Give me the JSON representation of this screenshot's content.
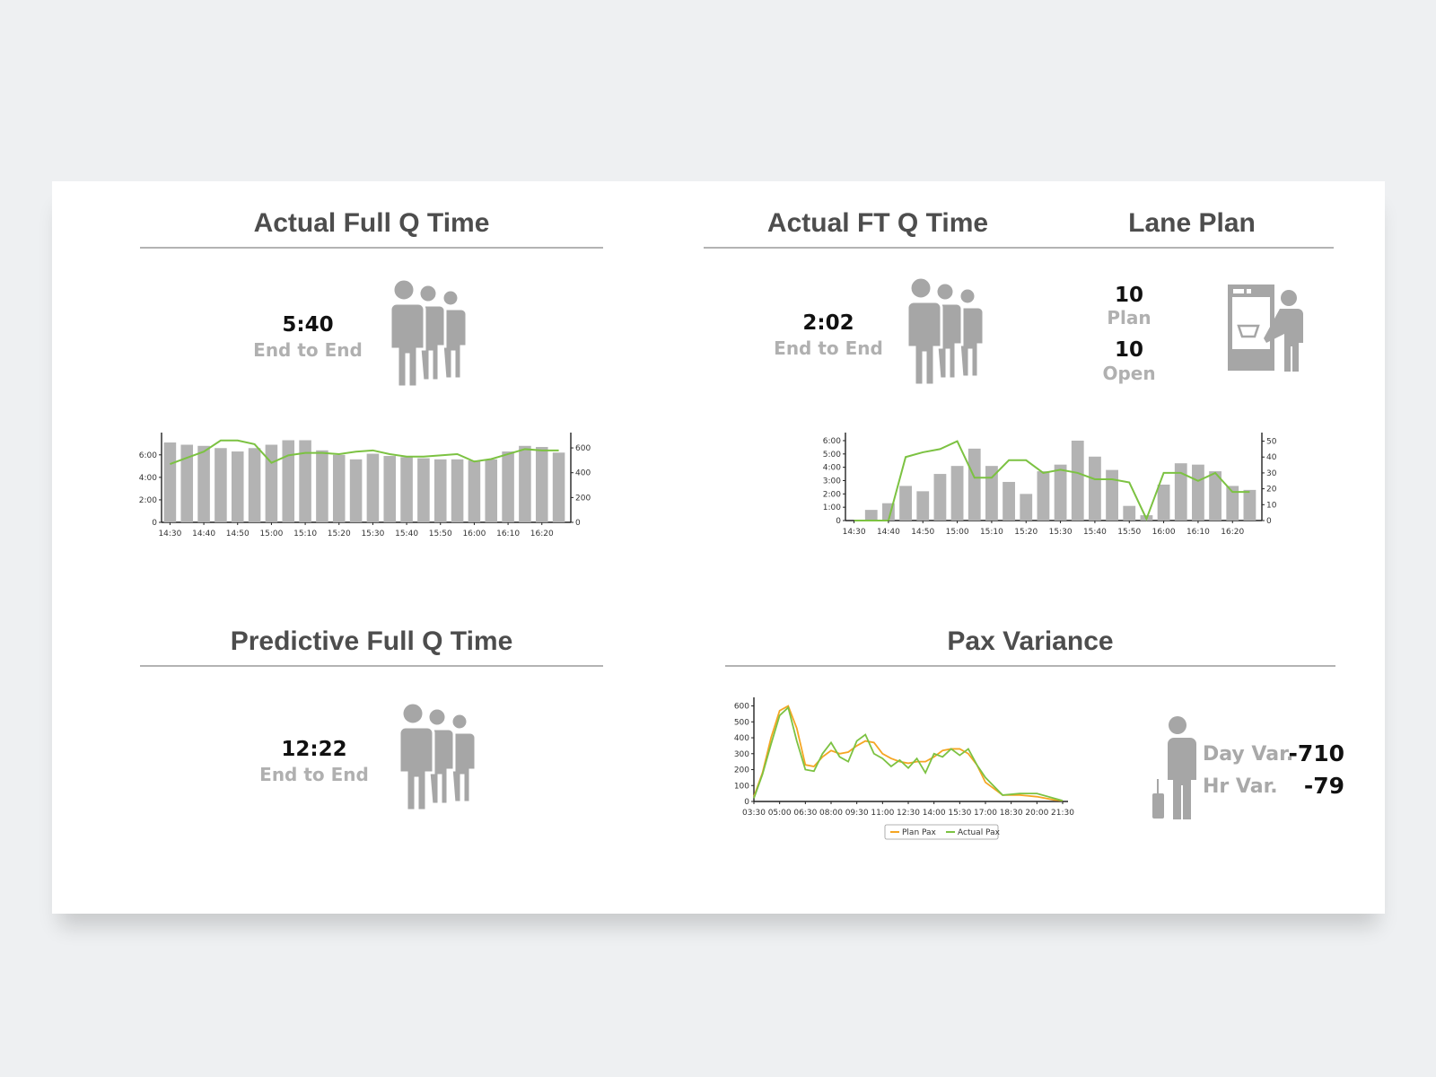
{
  "sections": {
    "actual_full_q": {
      "title": "Actual Full Q Time",
      "value": "5:40",
      "sub_label": "End to End",
      "icon": "people-queue-icon"
    },
    "actual_ft_q": {
      "title": "Actual FT Q Time",
      "value": "2:02",
      "sub_label": "End to End",
      "icon": "people-queue-icon"
    },
    "lane_plan": {
      "title": "Lane Plan",
      "plan_value": "10",
      "plan_label": "Plan",
      "open_value": "10",
      "open_label": "Open",
      "icon": "security-lane-icon"
    },
    "predictive_full_q": {
      "title": "Predictive Full Q Time",
      "value": "12:22",
      "sub_label": "End to End",
      "icon": "people-queue-icon"
    },
    "pax_variance": {
      "title": "Pax Variance",
      "day_label": "Day Var.",
      "day_value": "-710",
      "hr_label": "Hr Var.",
      "hr_value": "-79",
      "icon": "traveler-luggage-icon"
    }
  },
  "colors": {
    "bar": "#b3b3b3",
    "line_green": "#7cc242",
    "line_orange": "#f5a623",
    "icon_gray": "#a6a6a6"
  },
  "chart_data": [
    {
      "id": "actual_full_q_chart",
      "type": "bar",
      "categories": [
        "14:30",
        "14:35",
        "14:40",
        "14:45",
        "14:50",
        "14:55",
        "15:00",
        "15:05",
        "15:10",
        "15:15",
        "15:20",
        "15:25",
        "15:30",
        "15:35",
        "15:40",
        "15:45",
        "15:50",
        "15:55",
        "16:00",
        "16:05",
        "16:10",
        "16:15",
        "16:20",
        "16:25"
      ],
      "x_tick_labels": [
        "14:30",
        "14:40",
        "14:50",
        "15:00",
        "15:10",
        "15:20",
        "15:30",
        "15:40",
        "15:50",
        "16:00",
        "16:10",
        "16:20"
      ],
      "y_tick_labels": [
        "0",
        "2:00",
        "4:00",
        "6:00"
      ],
      "y2_tick_labels": [
        "0",
        "200",
        "400",
        "600"
      ],
      "ylim": [
        0,
        7.5
      ],
      "y2lim": [
        0,
        680
      ],
      "series": [
        {
          "values": [
            7.1,
            6.9,
            6.8,
            6.6,
            6.3,
            6.6,
            6.9,
            7.3,
            7.3,
            6.4,
            6.0,
            5.6,
            6.1,
            5.9,
            5.8,
            5.7,
            5.6,
            5.6,
            5.5,
            5.6,
            6.3,
            6.8,
            6.7,
            6.2
          ]
        },
        {
          "axis": "right",
          "values": [
            470,
            520,
            570,
            660,
            660,
            630,
            480,
            540,
            560,
            560,
            550,
            570,
            580,
            550,
            530,
            530,
            540,
            550,
            490,
            510,
            550,
            590,
            580,
            580
          ]
        }
      ]
    },
    {
      "id": "actual_ft_q_chart",
      "type": "bar",
      "categories": [
        "14:30",
        "14:35",
        "14:40",
        "14:45",
        "14:50",
        "14:55",
        "15:00",
        "15:05",
        "15:10",
        "15:15",
        "15:20",
        "15:25",
        "15:30",
        "15:35",
        "15:40",
        "15:45",
        "15:50",
        "15:55",
        "16:00",
        "16:05",
        "16:10",
        "16:15",
        "16:20",
        "16:25"
      ],
      "x_tick_labels": [
        "14:30",
        "14:40",
        "14:50",
        "15:00",
        "15:10",
        "15:20",
        "15:30",
        "15:40",
        "15:50",
        "16:00",
        "16:10",
        "16:20"
      ],
      "y_tick_labels": [
        "0",
        "1:00",
        "2:00",
        "3:00",
        "4:00",
        "5:00",
        "6:00"
      ],
      "y2_tick_labels": [
        "0",
        "10",
        "20",
        "30",
        "40",
        "50"
      ],
      "ylim": [
        0,
        6.2
      ],
      "y2lim": [
        0,
        52
      ],
      "series": [
        {
          "values": [
            0,
            0.8,
            1.3,
            2.6,
            2.2,
            3.5,
            4.1,
            5.4,
            4.1,
            2.9,
            2.0,
            3.7,
            4.2,
            6.0,
            4.8,
            3.8,
            1.1,
            0.4,
            2.7,
            4.3,
            4.2,
            3.7,
            2.6,
            2.3
          ]
        },
        {
          "axis": "right",
          "values": [
            0,
            0,
            0,
            40,
            43,
            45,
            50,
            27,
            27,
            38,
            38,
            30,
            32,
            30,
            26,
            26,
            24,
            1,
            30,
            30,
            25,
            30,
            18,
            18
          ]
        }
      ]
    },
    {
      "id": "pax_variance_chart",
      "type": "line",
      "x_tick_labels": [
        "03:30",
        "05:00",
        "06:30",
        "08:00",
        "09:30",
        "11:00",
        "12:30",
        "14:00",
        "15:30",
        "17:00",
        "18:30",
        "20:00",
        "21:30"
      ],
      "y_tick_labels": [
        "0",
        "100",
        "200",
        "300",
        "400",
        "500",
        "600"
      ],
      "xlim": [
        "03:30",
        "21:30"
      ],
      "ylim": [
        0,
        620
      ],
      "legend_position": "bottom",
      "series": [
        {
          "name": "Plan Pax",
          "x": [
            "03:30",
            "04:00",
            "04:30",
            "05:00",
            "05:30",
            "06:00",
            "06:30",
            "07:00",
            "07:30",
            "08:00",
            "08:30",
            "09:00",
            "09:30",
            "10:00",
            "10:30",
            "11:00",
            "11:30",
            "12:00",
            "12:30",
            "13:00",
            "13:30",
            "14:00",
            "14:30",
            "15:00",
            "15:30",
            "16:00",
            "16:30",
            "17:00",
            "18:00",
            "19:00",
            "20:00",
            "21:00",
            "21:30"
          ],
          "y": [
            30,
            180,
            400,
            570,
            600,
            460,
            230,
            220,
            280,
            320,
            300,
            310,
            350,
            380,
            370,
            300,
            270,
            250,
            240,
            250,
            250,
            280,
            320,
            330,
            330,
            300,
            230,
            120,
            40,
            40,
            30,
            10,
            5
          ]
        },
        {
          "name": "Actual Pax",
          "x": [
            "03:30",
            "04:00",
            "04:30",
            "05:00",
            "05:30",
            "06:00",
            "06:30",
            "07:00",
            "07:30",
            "08:00",
            "08:30",
            "09:00",
            "09:30",
            "10:00",
            "10:30",
            "11:00",
            "11:30",
            "12:00",
            "12:30",
            "13:00",
            "13:30",
            "14:00",
            "14:30",
            "15:00",
            "15:30",
            "16:00",
            "16:30",
            "17:00",
            "18:00",
            "19:00",
            "20:00",
            "21:00",
            "21:30"
          ],
          "y": [
            20,
            170,
            360,
            540,
            590,
            380,
            200,
            190,
            300,
            370,
            280,
            250,
            380,
            420,
            300,
            270,
            220,
            260,
            210,
            270,
            180,
            300,
            280,
            330,
            290,
            330,
            230,
            150,
            40,
            50,
            50,
            20,
            5
          ]
        }
      ]
    }
  ]
}
